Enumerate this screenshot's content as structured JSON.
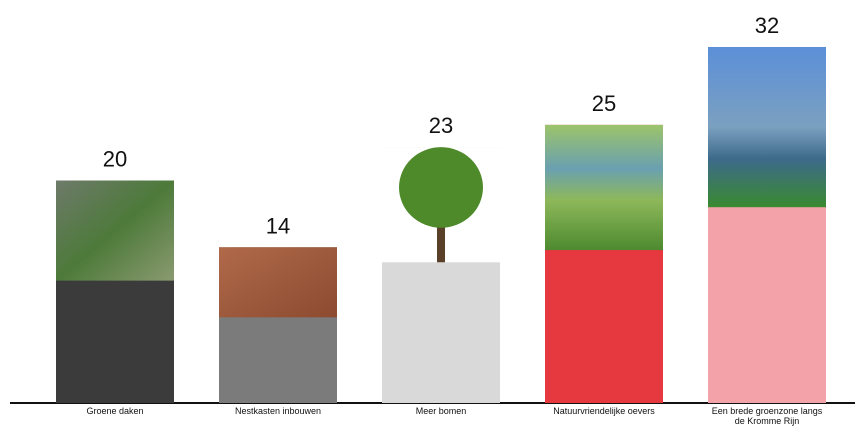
{
  "chart_data": {
    "type": "bar",
    "categories": [
      "Groene daken",
      "Nestkasten inbouwen",
      "Meer bomen",
      "Natuurvriendelijke oevers",
      "Een brede groenzone langs de Kromme Rijn"
    ],
    "values": [
      20,
      14,
      23,
      25,
      32
    ],
    "colors": [
      "#3b3b3b",
      "#7b7b7b",
      "#d9d9d9",
      "#e5383f",
      "#f2a2a8"
    ]
  }
}
